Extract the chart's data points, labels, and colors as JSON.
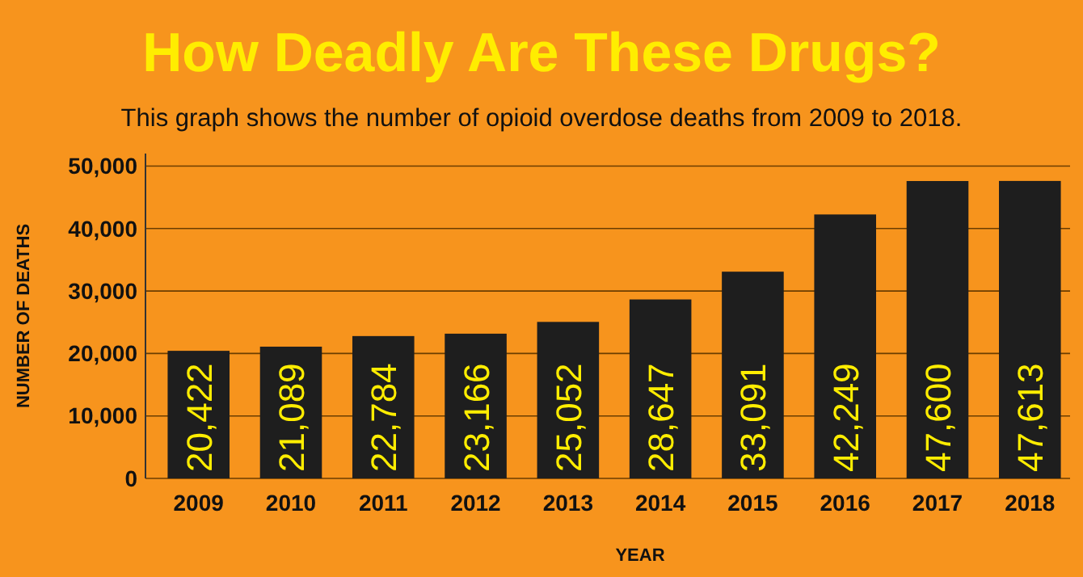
{
  "chart_data": {
    "type": "bar",
    "title": "How Deadly Are These Drugs?",
    "subtitle": "This graph shows the number of opioid overdose deaths from 2009 to 2018.",
    "xlabel": "YEAR",
    "ylabel": "NUMBER OF DEATHS",
    "categories": [
      "2009",
      "2010",
      "2011",
      "2012",
      "2013",
      "2014",
      "2015",
      "2016",
      "2017",
      "2018"
    ],
    "values": [
      20422,
      21089,
      22784,
      23166,
      25052,
      28647,
      33091,
      42249,
      47600,
      47613
    ],
    "value_labels": [
      "20,422",
      "21,089",
      "22,784",
      "23,166",
      "25,052",
      "28,647",
      "33,091",
      "42,249",
      "47,600",
      "47,613"
    ],
    "color": "#1e1e1e",
    "ylim": [
      0,
      52000
    ],
    "yticks": [
      {
        "value": 0,
        "label": "0"
      },
      {
        "value": 10000,
        "label": "10,000"
      },
      {
        "value": 20000,
        "label": "20,000"
      },
      {
        "value": 30000,
        "label": "30,000"
      },
      {
        "value": 40000,
        "label": "40,000"
      },
      {
        "value": 50000,
        "label": "50,000"
      }
    ],
    "grid": "y"
  }
}
